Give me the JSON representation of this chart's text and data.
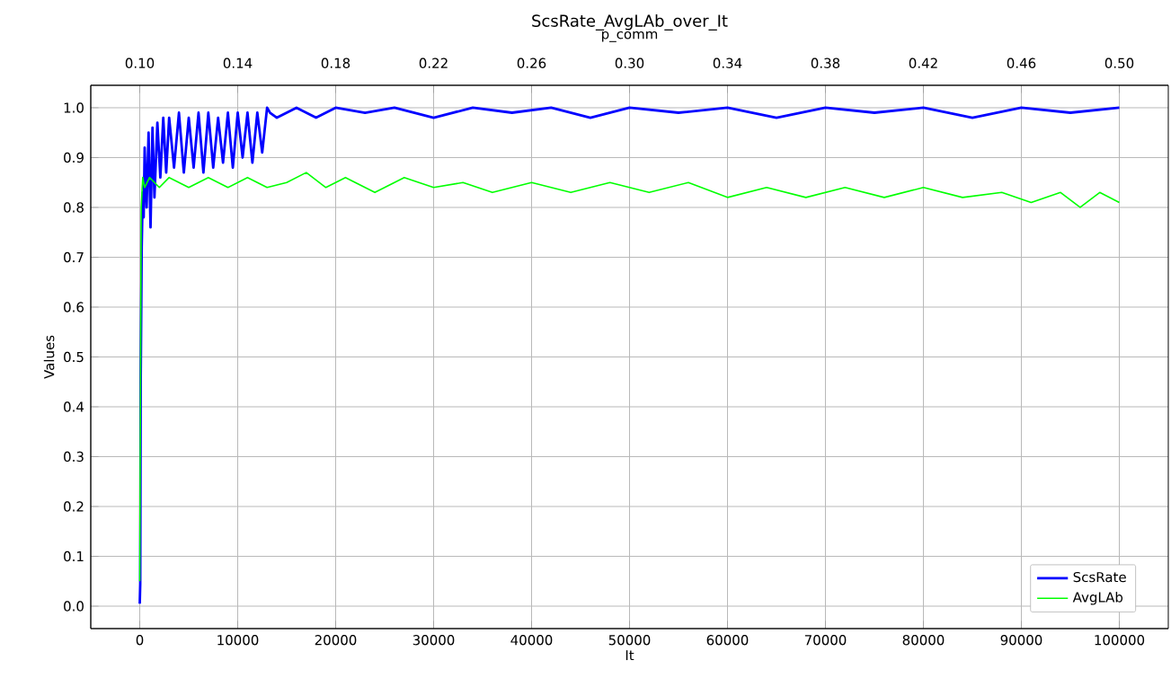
{
  "chart_data": {
    "type": "line",
    "title": "ScsRate_AvgLAb_over_It",
    "xlabel": "It",
    "ylabel": "Values",
    "x2label": "p_comm",
    "xlim": [
      -5000,
      105000
    ],
    "ylim": [
      -0.045,
      1.045
    ],
    "x2lim": [
      0.08,
      0.52
    ],
    "xticks": [
      0,
      10000,
      20000,
      30000,
      40000,
      50000,
      60000,
      70000,
      80000,
      90000,
      100000
    ],
    "yticks": [
      {
        "value": 0.0,
        "label": "0.0"
      },
      {
        "value": 0.1,
        "label": "0.1"
      },
      {
        "value": 0.2,
        "label": "0.2"
      },
      {
        "value": 0.3,
        "label": "0.3"
      },
      {
        "value": 0.4,
        "label": "0.4"
      },
      {
        "value": 0.5,
        "label": "0.5"
      },
      {
        "value": 0.6,
        "label": "0.6"
      },
      {
        "value": 0.7,
        "label": "0.7"
      },
      {
        "value": 0.8,
        "label": "0.8"
      },
      {
        "value": 0.9,
        "label": "0.9"
      },
      {
        "value": 1.0,
        "label": "1.0"
      }
    ],
    "x2ticks": [
      {
        "value": 0.1,
        "label": "0.10"
      },
      {
        "value": 0.14,
        "label": "0.14"
      },
      {
        "value": 0.18,
        "label": "0.18"
      },
      {
        "value": 0.22,
        "label": "0.22"
      },
      {
        "value": 0.26,
        "label": "0.26"
      },
      {
        "value": 0.3,
        "label": "0.30"
      },
      {
        "value": 0.34,
        "label": "0.34"
      },
      {
        "value": 0.38,
        "label": "0.38"
      },
      {
        "value": 0.42,
        "label": "0.42"
      },
      {
        "value": 0.46,
        "label": "0.46"
      },
      {
        "value": 0.5,
        "label": "0.50"
      }
    ],
    "grid": true,
    "legend": "bottom right",
    "marker": "none",
    "line_style": "solid",
    "series": [
      {
        "name": "ScsRate",
        "color": "#0000ff",
        "x": [
          0,
          50,
          100,
          200,
          300,
          400,
          500,
          700,
          900,
          1100,
          1300,
          1500,
          1800,
          2100,
          2400,
          2700,
          3000,
          3500,
          4000,
          4500,
          5000,
          5500,
          6000,
          6500,
          7000,
          7500,
          8000,
          8500,
          9000,
          9500,
          10000,
          10500,
          11000,
          11500,
          12000,
          12500,
          13000,
          13300,
          14000,
          16000,
          18000,
          20000,
          23000,
          26000,
          30000,
          34000,
          38000,
          42000,
          46000,
          50000,
          55000,
          60000,
          65000,
          70000,
          75000,
          80000,
          85000,
          90000,
          95000,
          100000
        ],
        "values": [
          0.005,
          0.045,
          0.46,
          0.72,
          0.83,
          0.78,
          0.92,
          0.8,
          0.95,
          0.76,
          0.96,
          0.82,
          0.97,
          0.86,
          0.98,
          0.87,
          0.98,
          0.88,
          0.99,
          0.87,
          0.98,
          0.88,
          0.99,
          0.87,
          0.99,
          0.88,
          0.98,
          0.89,
          0.99,
          0.88,
          0.99,
          0.9,
          0.99,
          0.89,
          0.99,
          0.91,
          1.0,
          0.99,
          0.98,
          1.0,
          0.98,
          1.0,
          0.99,
          1.0,
          0.98,
          1.0,
          0.99,
          1.0,
          0.98,
          1.0,
          0.99,
          1.0,
          0.98,
          1.0,
          0.99,
          1.0,
          0.98,
          1.0,
          0.99,
          1.0
        ]
      },
      {
        "name": "AvgLAb",
        "color": "#00ff00",
        "x": [
          0,
          50,
          150,
          300,
          500,
          1000,
          2000,
          3000,
          5000,
          7000,
          9000,
          11000,
          13000,
          15000,
          17000,
          19000,
          21000,
          24000,
          27000,
          30000,
          33000,
          36000,
          40000,
          44000,
          48000,
          52000,
          56000,
          60000,
          64000,
          68000,
          72000,
          76000,
          80000,
          84000,
          88000,
          91000,
          94000,
          96000,
          98000,
          100000
        ],
        "values": [
          0.05,
          0.3,
          0.8,
          0.86,
          0.84,
          0.86,
          0.84,
          0.86,
          0.84,
          0.86,
          0.84,
          0.86,
          0.84,
          0.85,
          0.87,
          0.84,
          0.86,
          0.83,
          0.86,
          0.84,
          0.85,
          0.83,
          0.85,
          0.83,
          0.85,
          0.83,
          0.85,
          0.82,
          0.84,
          0.82,
          0.84,
          0.82,
          0.84,
          0.82,
          0.83,
          0.81,
          0.83,
          0.8,
          0.83,
          0.81
        ]
      }
    ]
  }
}
